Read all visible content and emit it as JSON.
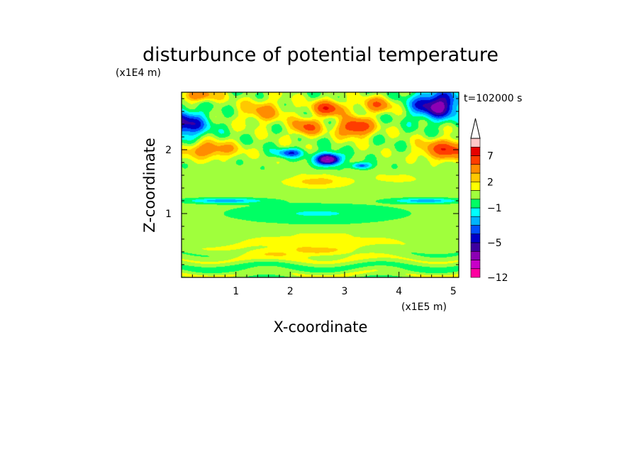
{
  "chart_data": {
    "type": "heatmap",
    "title": "disturbunce of potential temperature",
    "xlabel": "X-coordinate",
    "ylabel": "Z-coordinate",
    "x_unit": "(x1E5 m)",
    "y_unit": "(x1E4 m)",
    "time_label": "t=102000 s",
    "xlim": [
      0,
      5.1
    ],
    "ylim": [
      0,
      2.9
    ],
    "x_ticks": [
      "1",
      "2",
      "3",
      "4",
      "5"
    ],
    "y_ticks": [
      "1",
      "2"
    ],
    "colorbar": {
      "labels": [
        "7",
        "2",
        "−1",
        "−5",
        "−12"
      ],
      "label_values": [
        7,
        2,
        -1,
        -5,
        -12
      ],
      "levels": [
        -12,
        -10,
        -8,
        -6,
        -5,
        -4,
        -3,
        -2,
        -1,
        0,
        1,
        2,
        3,
        5,
        7,
        9,
        11
      ],
      "colors": [
        "#ff00a0",
        "#c800c8",
        "#8c00b4",
        "#3c00a0",
        "#0000c8",
        "#0050ff",
        "#00b4ff",
        "#00ffff",
        "#00ff64",
        "#a0ff3c",
        "#ffff00",
        "#ffc800",
        "#ff8c00",
        "#ff3c00",
        "#e60000",
        "#ffc8c8"
      ],
      "extend": "max"
    },
    "features": [
      {
        "x": 0.0,
        "z": 2.4,
        "sx": 0.45,
        "sz": 0.22,
        "v": -6
      },
      {
        "x": 4.7,
        "z": 2.7,
        "sx": 0.45,
        "sz": 0.22,
        "v": -7
      },
      {
        "x": 2.7,
        "z": 1.85,
        "sx": 0.22,
        "sz": 0.09,
        "v": -9
      },
      {
        "x": 2.0,
        "z": 1.95,
        "sx": 0.28,
        "sz": 0.07,
        "v": -4
      },
      {
        "x": 3.3,
        "z": 1.75,
        "sx": 0.18,
        "sz": 0.05,
        "v": -4
      },
      {
        "x": 2.7,
        "z": 2.65,
        "sx": 0.28,
        "sz": 0.12,
        "v": 6
      },
      {
        "x": 3.2,
        "z": 2.35,
        "sx": 0.3,
        "sz": 0.14,
        "v": 7
      },
      {
        "x": 2.3,
        "z": 2.35,
        "sx": 0.25,
        "sz": 0.13,
        "v": 5
      },
      {
        "x": 3.6,
        "z": 2.7,
        "sx": 0.3,
        "sz": 0.12,
        "v": 4
      },
      {
        "x": 4.9,
        "z": 2.0,
        "sx": 0.45,
        "sz": 0.15,
        "v": 6
      },
      {
        "x": 0.5,
        "z": 2.0,
        "sx": 0.5,
        "sz": 0.13,
        "v": 4
      },
      {
        "x": 0.3,
        "z": 2.85,
        "sx": 0.35,
        "sz": 0.1,
        "v": 4
      },
      {
        "x": 1.5,
        "z": 2.6,
        "sx": 0.4,
        "sz": 0.18,
        "v": 3
      },
      {
        "x": 2.5,
        "z": 1.5,
        "sx": 0.6,
        "sz": 0.1,
        "v": 2
      },
      {
        "x": 4.0,
        "z": 1.55,
        "sx": 0.5,
        "sz": 0.08,
        "v": 1
      },
      {
        "x": 0.8,
        "z": 1.2,
        "sx": 0.7,
        "sz": 0.04,
        "v": -3
      },
      {
        "x": 4.5,
        "z": 1.2,
        "sx": 0.6,
        "sz": 0.04,
        "v": -3
      },
      {
        "x": 2.5,
        "z": 1.0,
        "sx": 1.5,
        "sz": 0.14,
        "v": -1.5
      },
      {
        "x": 2.5,
        "z": 0.6,
        "sx": 1.6,
        "sz": 0.09,
        "v": 1.2
      },
      {
        "x": 2.2,
        "z": 0.4,
        "sx": 1.2,
        "sz": 0.09,
        "v": 2
      },
      {
        "x": 1.3,
        "z": 0.1,
        "sx": 1.0,
        "sz": 0.06,
        "v": -0.6
      },
      {
        "x": 4.4,
        "z": 0.1,
        "sx": 0.8,
        "sz": 0.05,
        "v": -0.5
      }
    ]
  }
}
